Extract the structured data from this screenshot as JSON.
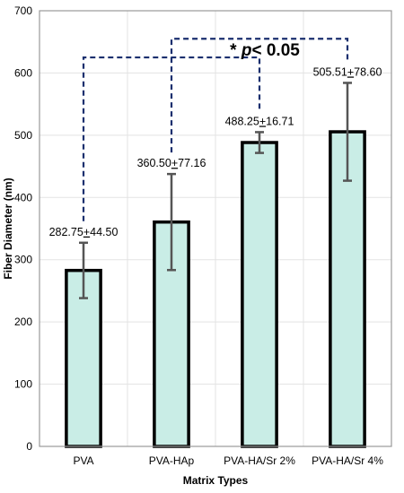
{
  "chart_data": {
    "type": "bar",
    "title": "",
    "xlabel": "Matrix Types",
    "ylabel": "Fiber Diameter (nm)",
    "ylim": [
      0,
      700
    ],
    "yticks": [
      0,
      100,
      200,
      300,
      400,
      500,
      600,
      700
    ],
    "grid": true,
    "categories": [
      "PVA",
      "PVA-HAp",
      "PVA-HA/Sr 2%",
      "PVA-HA/Sr 4%"
    ],
    "values": [
      282.75,
      360.5,
      488.25,
      505.51
    ],
    "errors": [
      44.5,
      77.16,
      16.71,
      78.6
    ],
    "value_labels": [
      "282.75",
      "360.50",
      "488.25",
      "505.51"
    ],
    "error_labels": [
      "44.50",
      "77.16",
      "16.71",
      "78.60"
    ],
    "plus_minus_glyph": "+",
    "bar_color": "#c9ede6",
    "bar_edge_color": "#000000",
    "errorbar_color": "#555555",
    "bracket_color": "#1a2f6e",
    "significance": {
      "marker": "* ",
      "p_text": "p",
      "rest": "< 0.05",
      "brackets": [
        {
          "from": "PVA",
          "to": "PVA-HA/Sr 2%",
          "level": 625
        },
        {
          "from": "PVA-HAp",
          "to": "PVA-HA/Sr 4%",
          "level": 655
        }
      ]
    }
  }
}
